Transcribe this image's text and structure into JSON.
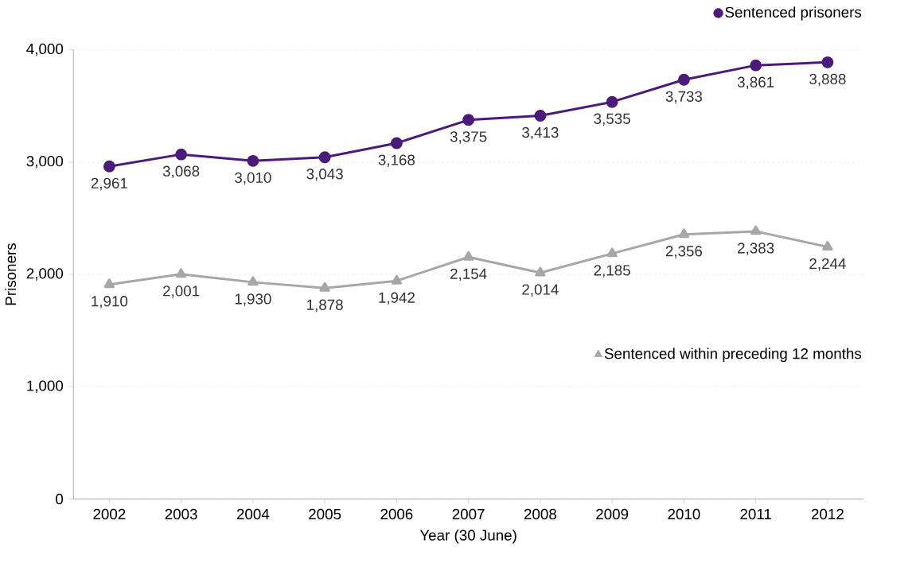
{
  "chart_data": {
    "type": "line",
    "xlabel": "Year (30 June)",
    "ylabel": "Prisoners",
    "categories": [
      "2002",
      "2003",
      "2004",
      "2005",
      "2006",
      "2007",
      "2008",
      "2009",
      "2010",
      "2011",
      "2012"
    ],
    "ylim": [
      0,
      4000
    ],
    "yticks": [
      0,
      {
        "value": 1000,
        "label": "1,000"
      },
      {
        "value": 2000,
        "label": "2,000"
      },
      {
        "value": 3000,
        "label": "3,000"
      },
      {
        "value": 4000,
        "label": "4,000"
      }
    ],
    "grid": "y",
    "line_style": "solid",
    "legend": "right",
    "series": [
      {
        "name": "Sentenced prisoners",
        "color": "#4b1a7a",
        "marker": "circle",
        "values": [
          2961,
          3068,
          3010,
          3043,
          3168,
          3375,
          3413,
          3535,
          3733,
          3861,
          3888
        ],
        "value_labels": [
          "2,961",
          "3,068",
          "3,010",
          "3,043",
          "3,168",
          "3,375",
          "3,413",
          "3,535",
          "3,733",
          "3,861",
          "3,888"
        ]
      },
      {
        "name": "Sentenced within preceding 12 months",
        "color": "#a7a7aa",
        "marker": "triangle",
        "values": [
          1910,
          2001,
          1930,
          1878,
          1942,
          2154,
          2014,
          2185,
          2356,
          2383,
          2244
        ],
        "value_labels": [
          "1,910",
          "2,001",
          "1,930",
          "1,878",
          "1,942",
          "2,154",
          "2,014",
          "2,185",
          "2,356",
          "2,383",
          "2,244"
        ]
      }
    ]
  }
}
